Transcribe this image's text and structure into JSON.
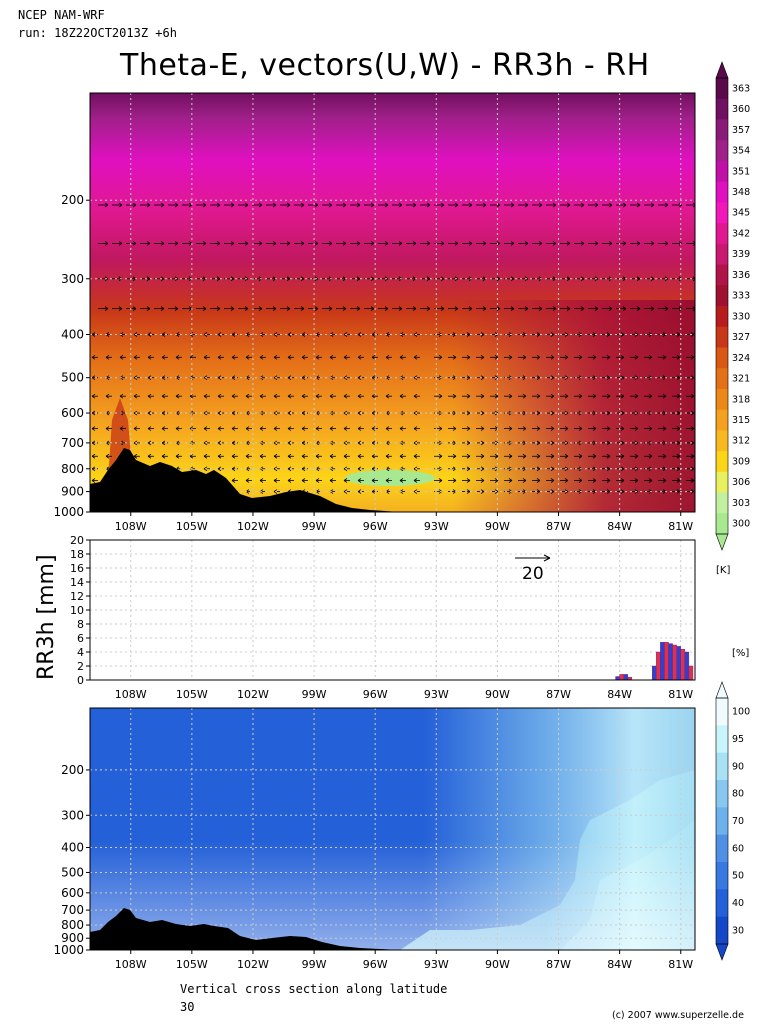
{
  "header": {
    "model": "NCEP NAM-WRF",
    "run": "run: 18Z22OCT2013Z +6h",
    "title": "Theta-E, vectors(U,W) - RR3h - RH"
  },
  "footer": {
    "caption": "Vertical cross section along latitude",
    "latitude": "30",
    "credit": "(c) 2007 www.superzelle.de"
  },
  "colors": {
    "background": "#ffffff",
    "terrain": "#000000",
    "grid": "#bbbbbb"
  },
  "chart_data": [
    {
      "id": "theta-e",
      "type": "heatmap",
      "title": "Theta-E, vectors(U,W) - RR3h - RH",
      "x_ticks": [
        "108W",
        "105W",
        "102W",
        "99W",
        "96W",
        "93W",
        "90W",
        "87W",
        "84W",
        "81W"
      ],
      "x_values": [
        -108,
        -105,
        -102,
        -99,
        -96,
        -93,
        -90,
        -87,
        -84,
        -81
      ],
      "xlim": [
        -110,
        -80.3
      ],
      "y_ticks": [
        "200",
        "300",
        "400",
        "500",
        "600",
        "700",
        "800",
        "900",
        "1000"
      ],
      "y_values": [
        200,
        300,
        400,
        500,
        600,
        700,
        800,
        900,
        1000
      ],
      "ylim": [
        115,
        1000
      ],
      "y_scale": "log, inverted",
      "colorbar": {
        "unit": "[K]",
        "labels": [
          "363",
          "360",
          "357",
          "354",
          "351",
          "348",
          "345",
          "342",
          "339",
          "336",
          "333",
          "330",
          "327",
          "324",
          "321",
          "318",
          "315",
          "312",
          "309",
          "306",
          "303",
          "300"
        ],
        "colors": [
          "#5a0a4a",
          "#701060",
          "#8a1a78",
          "#a0208a",
          "#c010a8",
          "#e010c0",
          "#f018b8",
          "#e01890",
          "#c81870",
          "#b01448",
          "#a01030",
          "#b81c1c",
          "#c83818",
          "#d85814",
          "#e47018",
          "#ec8818",
          "#f4a020",
          "#f8b820",
          "#fcd418",
          "#e8f060",
          "#c0f0a0",
          "#a8e890"
        ]
      },
      "grid": true
    },
    {
      "id": "rr3h",
      "type": "bar",
      "ylabel": "RR3h [mm]",
      "ylim": [
        0,
        20
      ],
      "y_ticks": [
        0,
        2,
        4,
        6,
        8,
        10,
        12,
        14,
        16,
        18,
        20
      ],
      "x_ticks": [
        "108W",
        "105W",
        "102W",
        "99W",
        "96W",
        "93W",
        "90W",
        "87W",
        "84W",
        "81W"
      ],
      "vector_reference": "20",
      "series": [
        {
          "values_x": [
            -84.1,
            -83.9,
            -83.7,
            -83.5
          ],
          "values": [
            0.5,
            0.8,
            0.8,
            0.4
          ]
        },
        {
          "values_x": [
            -82.3,
            -82.1,
            -81.9,
            -81.7,
            -81.5,
            -81.3,
            -81.1,
            -80.9,
            -80.7,
            -80.5
          ],
          "values": [
            2.0,
            4.0,
            5.4,
            5.4,
            5.2,
            5.0,
            4.8,
            4.4,
            4.0,
            2.0
          ]
        }
      ],
      "grid": true
    },
    {
      "id": "rh",
      "type": "heatmap",
      "x_ticks": [
        "108W",
        "105W",
        "102W",
        "99W",
        "96W",
        "93W",
        "90W",
        "87W",
        "84W",
        "81W"
      ],
      "y_ticks": [
        "200",
        "300",
        "400",
        "500",
        "600",
        "700",
        "800",
        "900",
        "1000"
      ],
      "ylim": [
        115,
        1000
      ],
      "y_scale": "log, inverted",
      "colorbar": {
        "unit": "[%]",
        "labels": [
          "100",
          "95",
          "90",
          "80",
          "70",
          "60",
          "50",
          "40",
          "30"
        ],
        "colors": [
          "#f0fbff",
          "#c8f4fc",
          "#a8e0f4",
          "#88c8f0",
          "#6cb0ec",
          "#5090e4",
          "#3878e0",
          "#2460d8",
          "#1448c8"
        ]
      },
      "grid": true
    }
  ]
}
